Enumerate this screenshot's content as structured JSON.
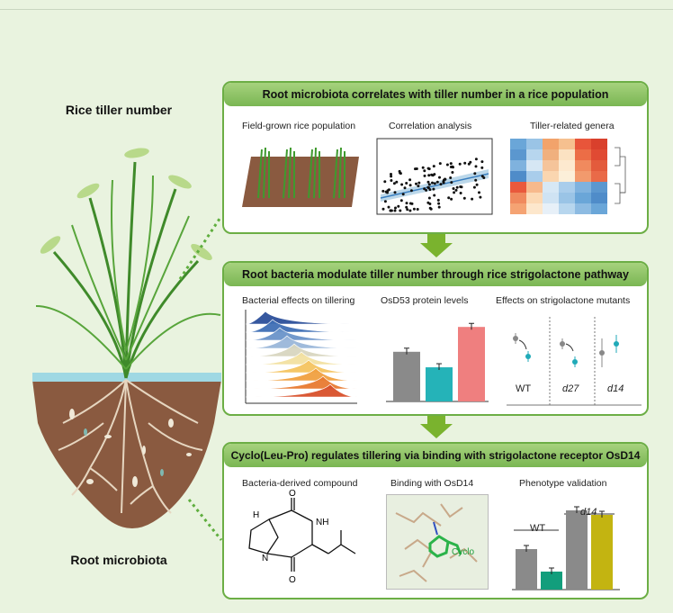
{
  "side": {
    "top_label": "Rice tiller number",
    "bottom_label": "Root microbiota"
  },
  "panel1": {
    "title": "Root microbiota correlates with tiller number in a rice population",
    "sub1": "Field-grown rice population",
    "sub2": "Correlation analysis",
    "sub3": "Tiller-related genera"
  },
  "panel2": {
    "title": "Root bacteria modulate tiller number through rice strigolactone pathway",
    "sub1": "Bacterial effects on tillering",
    "sub2": "OsD53 protein levels",
    "sub3": "Effects on strigolactone mutants",
    "mutants": [
      "WT",
      "d27",
      "d14"
    ]
  },
  "panel3": {
    "title": "Cyclo(Leu-Pro) regulates tillering via binding with strigolactone receptor OsD14",
    "sub1": "Bacteria-derived compound",
    "sub2": "Binding with OsD14",
    "sub3": "Phenotype validation",
    "cyclo_label": "Cyclo",
    "wt_label": "WT",
    "d14_label": "d14"
  },
  "chart_data": [
    {
      "type": "bar",
      "categories": [
        "",
        "",
        ""
      ],
      "values": [
        48,
        33,
        72
      ],
      "ylim": [
        0,
        80
      ]
    },
    {
      "type": "bar",
      "categories": [
        "",
        "",
        "",
        ""
      ],
      "values": [
        45,
        20,
        88,
        83
      ],
      "ylim": [
        0,
        100
      ]
    }
  ],
  "colors": {
    "panel_border": "#6cae45",
    "banner": "#8bc363",
    "arrow": "#7ab32e",
    "bar_gray": "#8a8a8a",
    "bar_teal": "#25b3b8",
    "bar_pink": "#ef7f7f",
    "bar_green": "#129e7c",
    "bar_olive": "#c3b411",
    "soil": "#8a5a40"
  }
}
